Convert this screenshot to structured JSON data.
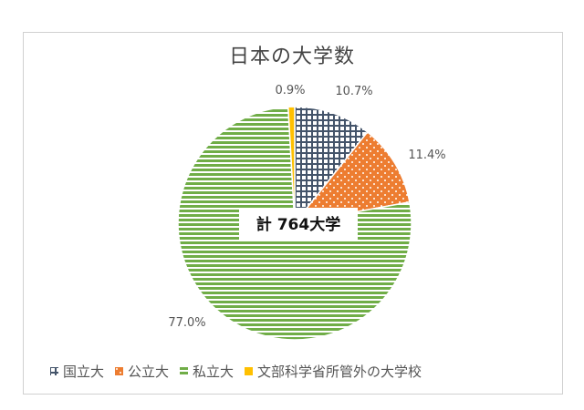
{
  "chart_data": {
    "type": "pie",
    "title": "日本の大学数",
    "center_label": "計 764大学",
    "slices": [
      {
        "name": "国立大",
        "value": 10.7,
        "label": "10.7%",
        "color": "#44546a",
        "pattern": "grid"
      },
      {
        "name": "公立大",
        "value": 11.4,
        "label": "11.4%",
        "color": "#ed7d31",
        "pattern": "dots"
      },
      {
        "name": "私立大",
        "value": 77.0,
        "label": "77.0%",
        "color": "#70ad47",
        "pattern": "stripes"
      },
      {
        "name": "文部科学省所管外の大学校",
        "value": 0.9,
        "label": "0.9%",
        "color": "#ffc000",
        "pattern": "solid"
      }
    ],
    "legend_position": "bottom"
  }
}
